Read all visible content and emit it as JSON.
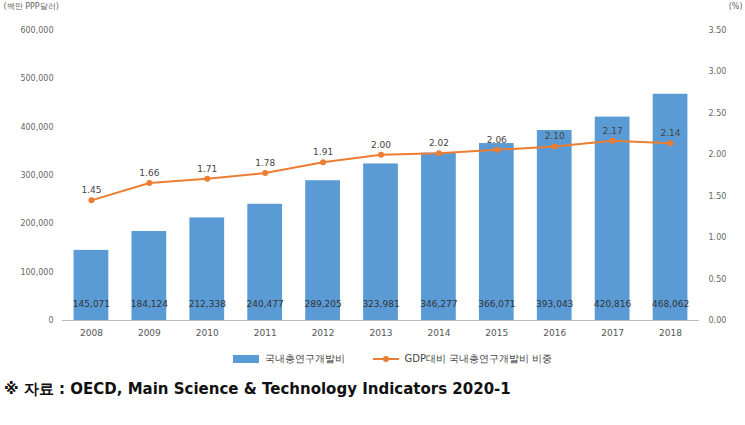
{
  "chart_data": {
    "type": "bar",
    "y_label": "(백만 PPP달러)",
    "y2_label": "(%)",
    "caption": "※ 자료 : OECD, Main Science & Technology Indicators 2020-1",
    "categories": [
      "2008",
      "2009",
      "2010",
      "2011",
      "2012",
      "2013",
      "2014",
      "2015",
      "2016",
      "2017",
      "2018"
    ],
    "series": [
      {
        "name": "국내총연구개발비",
        "type": "bar",
        "color": "#5b9bd5",
        "values": [
          145071,
          184124,
          212338,
          240477,
          289205,
          323981,
          346277,
          366071,
          393043,
          420816,
          468062
        ],
        "value_labels": [
          "145,071",
          "184,124",
          "212,338",
          "240,477",
          "289,205",
          "323,981",
          "346,277",
          "366,071",
          "393,043",
          "420,816",
          "468,062"
        ]
      },
      {
        "name": "GDP대비 국내총연구개발비 비중",
        "type": "line",
        "axis": "y2",
        "color": "#ed7d31",
        "marker": "circle",
        "values": [
          1.45,
          1.66,
          1.71,
          1.78,
          1.91,
          2.0,
          2.02,
          2.06,
          2.1,
          2.17,
          2.14
        ],
        "value_labels": [
          "1.45",
          "1.66",
          "1.71",
          "1.78",
          "1.91",
          "2.00",
          "2.02",
          "2.06",
          "2.10",
          "2.17",
          "2.14"
        ]
      }
    ],
    "ylim": [
      0,
      600000
    ],
    "yticks": [
      0,
      {
        "value": 100000,
        "label": "100,000"
      },
      {
        "value": 200000,
        "label": "200,000"
      },
      {
        "value": 300000,
        "label": "300,000"
      },
      {
        "value": 400000,
        "label": "400,000"
      },
      {
        "value": 500000,
        "label": "500,000"
      },
      {
        "value": 600000,
        "label": "600,000"
      }
    ],
    "y2lim": [
      0,
      3.5
    ],
    "y2ticks": [
      {
        "value": 0,
        "label": "0.00"
      },
      {
        "value": 0.5,
        "label": "0.50"
      },
      {
        "value": 1,
        "label": "1.00"
      },
      {
        "value": 1.5,
        "label": "1.50"
      },
      {
        "value": 2,
        "label": "2.00"
      },
      {
        "value": 2.5,
        "label": "2.50"
      },
      {
        "value": 3,
        "label": "3.00"
      },
      {
        "value": 3.5,
        "label": "3.50"
      }
    ],
    "grid": false,
    "data_labels": true,
    "legend": "bottom"
  }
}
